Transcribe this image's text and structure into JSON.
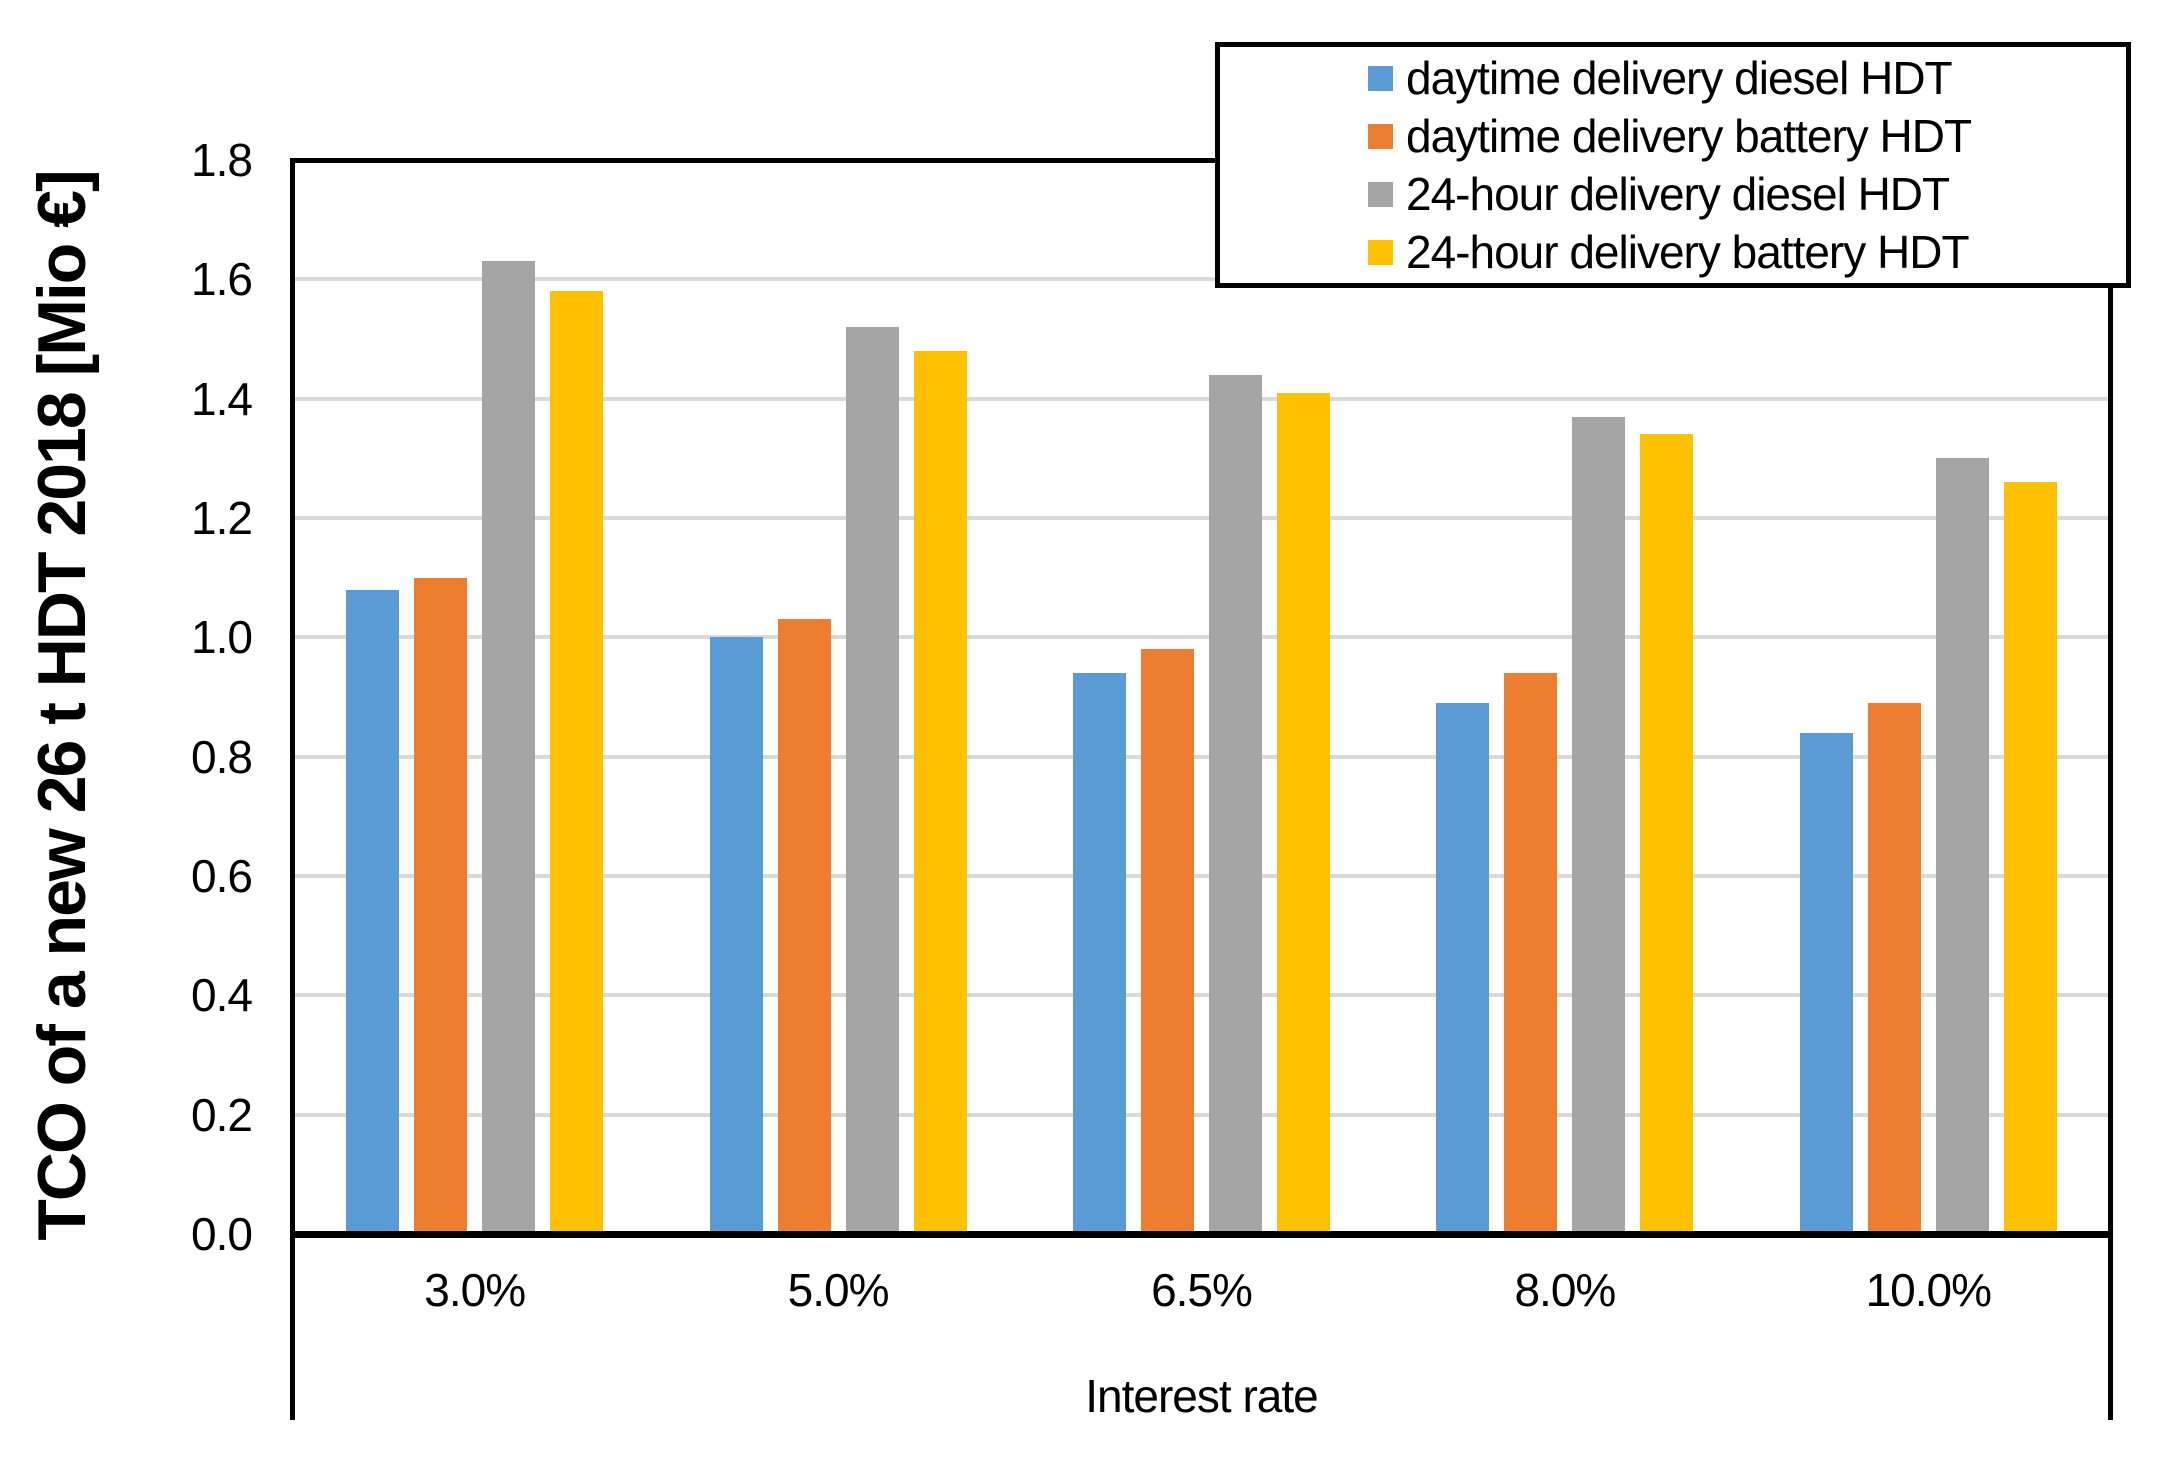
{
  "chart_data": {
    "type": "bar",
    "title": "",
    "xlabel": "Interest rate",
    "ylabel": "TCO of a new 26 t HDT 2018 [Mio €]",
    "categories": [
      "3.0%",
      "5.0%",
      "6.5%",
      "8.0%",
      "10.0%"
    ],
    "series": [
      {
        "name": "daytime delivery diesel HDT",
        "color": "#5B9BD5",
        "values": [
          1.08,
          1.0,
          0.94,
          0.89,
          0.84
        ]
      },
      {
        "name": "daytime delivery battery HDT",
        "color": "#ED7D31",
        "values": [
          1.1,
          1.03,
          0.98,
          0.94,
          0.89
        ]
      },
      {
        "name": "24-hour delivery diesel HDT",
        "color": "#A5A5A5",
        "values": [
          1.63,
          1.52,
          1.44,
          1.37,
          1.3
        ]
      },
      {
        "name": "24-hour delivery battery HDT",
        "color": "#FFC000",
        "values": [
          1.58,
          1.48,
          1.41,
          1.34,
          1.26
        ]
      }
    ],
    "ylim": [
      0,
      1.8
    ],
    "ytick_step": 0.2,
    "ytick_decimals": 1,
    "grid": "horizontal",
    "gridline_color": "#D9D9D9",
    "axis_color": "#000000",
    "legend_position": "top-right"
  }
}
